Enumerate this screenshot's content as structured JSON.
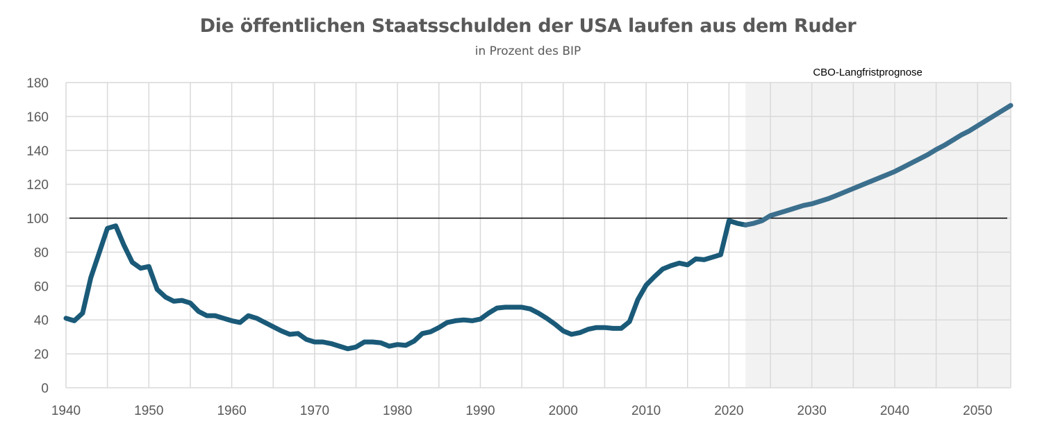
{
  "chart_data": {
    "type": "line",
    "title": "Die öffentlichen Staatsschulden der USA laufen aus dem Ruder",
    "subtitle": "in Prozent des BIP",
    "annotation": "CBO-Langfristprognose",
    "reference_line": 100,
    "xlim": [
      1940,
      2054
    ],
    "ylim": [
      0,
      180
    ],
    "x_ticks": [
      1940,
      1950,
      1960,
      1970,
      1980,
      1990,
      2000,
      2010,
      2020,
      2030,
      2040,
      2050
    ],
    "y_ticks": [
      0,
      20,
      40,
      60,
      80,
      100,
      120,
      140,
      160,
      180
    ],
    "forecast_start": 2022,
    "grid": true,
    "colors": {
      "historical": "#1a5a78",
      "forecast": "#3b6f8d",
      "forecast_shade": "#f2f2f2",
      "grid": "#d9d9d9",
      "reference": "#000000"
    },
    "series": [
      {
        "x": [
          1940,
          1941,
          1942,
          1943,
          1944,
          1945,
          1946,
          1947,
          1948,
          1949,
          1950,
          1951,
          1952,
          1953,
          1954,
          1955,
          1956,
          1957,
          1958,
          1959,
          1960,
          1961,
          1962,
          1963,
          1964,
          1965,
          1966,
          1967,
          1968,
          1969,
          1970,
          1971,
          1972,
          1973,
          1974,
          1975,
          1976,
          1977,
          1978,
          1979,
          1980,
          1981,
          1982,
          1983,
          1984,
          1985,
          1986,
          1987,
          1988,
          1989,
          1990,
          1991,
          1992,
          1993,
          1994,
          1995,
          1996,
          1997,
          1998,
          1999,
          2000,
          2001,
          2002,
          2003,
          2004,
          2005,
          2006,
          2007,
          2008,
          2009,
          2010,
          2011,
          2012,
          2013,
          2014,
          2015,
          2016,
          2017,
          2018,
          2019,
          2020,
          2021,
          2022
        ],
        "values": [
          41,
          39.5,
          44,
          65,
          79.5,
          94,
          95.5,
          84,
          74,
          70.5,
          71.5,
          58,
          53.5,
          51,
          51.5,
          50,
          45,
          42.5,
          42.5,
          41,
          39.5,
          38.5,
          42.5,
          41,
          38.5,
          36,
          33.5,
          31.5,
          32,
          28.5,
          27,
          27,
          26,
          24.5,
          23,
          24,
          27,
          27,
          26.5,
          24.5,
          25.5,
          25,
          27.5,
          32,
          33,
          35.5,
          38.5,
          39.5,
          40,
          39.5,
          40.5,
          44,
          47,
          47.5,
          47.5,
          47.5,
          46.5,
          44,
          41,
          37.5,
          33.5,
          31.5,
          32.5,
          34.5,
          35.5,
          35.5,
          35,
          35,
          39,
          52,
          60.5,
          65.5,
          70,
          72,
          73.5,
          72.5,
          76,
          75.5,
          77,
          78.5,
          98.5,
          97,
          96
        ]
      },
      {
        "x": [
          2022,
          2023,
          2024,
          2025,
          2026,
          2027,
          2028,
          2029,
          2030,
          2031,
          2032,
          2033,
          2034,
          2035,
          2036,
          2037,
          2038,
          2039,
          2040,
          2041,
          2042,
          2043,
          2044,
          2045,
          2046,
          2047,
          2048,
          2049,
          2050,
          2051,
          2052,
          2053,
          2054
        ],
        "values": [
          96,
          97,
          98.5,
          101.5,
          103,
          104.5,
          106,
          107.5,
          108.5,
          110,
          111.5,
          113.5,
          115.5,
          117.5,
          119.5,
          121.5,
          123.5,
          125.5,
          127.5,
          130,
          132.5,
          135,
          137.5,
          140.5,
          143,
          146,
          149,
          151.5,
          154.5,
          157.5,
          160.5,
          163.5,
          166.5
        ]
      }
    ]
  }
}
